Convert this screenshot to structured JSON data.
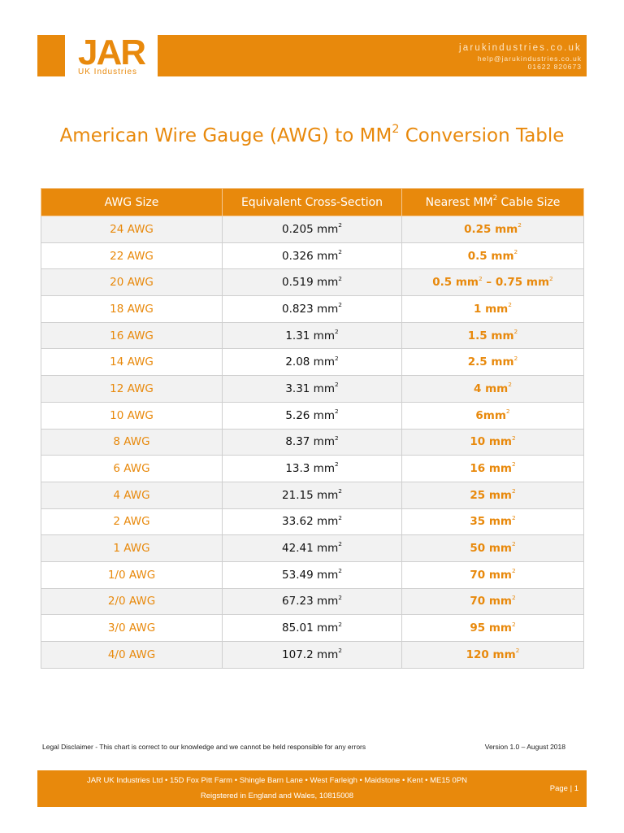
{
  "header": {
    "logo_text": "JAR",
    "logo_subtext": "UK Industries",
    "website": "jarukindustries.co.uk",
    "email": "help@jarukindustries.co.uk",
    "phone": "01622 820673"
  },
  "title": {
    "prefix": "American Wire Gauge (AWG) to MM",
    "superscript": "2",
    "suffix": " Conversion Table"
  },
  "table": {
    "headers": {
      "awg": "AWG Size",
      "equivalent": "Equivalent Cross-Section",
      "nearest_prefix": "Nearest MM",
      "nearest_sup": "2",
      "nearest_suffix": " Cable Size"
    },
    "rows": [
      {
        "awg": "24 AWG",
        "eq": "0.205 mm",
        "near": [
          [
            "0.25 mm",
            "2"
          ]
        ]
      },
      {
        "awg": "22 AWG",
        "eq": "0.326 mm",
        "near": [
          [
            "0.5 mm",
            "2"
          ]
        ]
      },
      {
        "awg": "20 AWG",
        "eq": "0.519 mm",
        "near": [
          [
            "0.5 mm",
            "2"
          ],
          [
            " – 0.75 mm",
            "2"
          ]
        ]
      },
      {
        "awg": "18 AWG",
        "eq": "0.823 mm",
        "near": [
          [
            "1 mm",
            "2"
          ]
        ]
      },
      {
        "awg": "16 AWG",
        "eq": "1.31 mm",
        "near": [
          [
            "1.5 mm",
            "2"
          ]
        ]
      },
      {
        "awg": "14 AWG",
        "eq": "2.08 mm",
        "near": [
          [
            "2.5 mm",
            "2"
          ]
        ]
      },
      {
        "awg": "12 AWG",
        "eq": "3.31 mm",
        "near": [
          [
            "4 mm",
            "2"
          ]
        ]
      },
      {
        "awg": "10 AWG",
        "eq": "5.26 mm",
        "near": [
          [
            "6mm",
            "2"
          ]
        ]
      },
      {
        "awg": "8 AWG",
        "eq": "8.37 mm",
        "near": [
          [
            "10 mm",
            "2"
          ]
        ]
      },
      {
        "awg": "6 AWG",
        "eq": "13.3 mm",
        "near": [
          [
            "16 mm",
            "2"
          ]
        ]
      },
      {
        "awg": "4 AWG",
        "eq": "21.15 mm",
        "near": [
          [
            "25 mm",
            "2"
          ]
        ]
      },
      {
        "awg": "2 AWG",
        "eq": "33.62 mm",
        "near": [
          [
            "35 mm",
            "2"
          ]
        ]
      },
      {
        "awg": "1 AWG",
        "eq": "42.41 mm",
        "near": [
          [
            "50 mm",
            "2"
          ]
        ]
      },
      {
        "awg": "1/0 AWG",
        "eq": "53.49 mm",
        "near": [
          [
            "70 mm",
            "2"
          ]
        ]
      },
      {
        "awg": "2/0 AWG",
        "eq": "67.23 mm",
        "near": [
          [
            "70 mm",
            "2"
          ]
        ]
      },
      {
        "awg": "3/0 AWG",
        "eq": "85.01 mm",
        "near": [
          [
            "95 mm",
            "2"
          ]
        ]
      },
      {
        "awg": "4/0 AWG",
        "eq": "107.2 mm",
        "near": [
          [
            "120 mm",
            "2"
          ]
        ]
      }
    ],
    "unit_superscript": "2"
  },
  "disclaimer": "Legal Disclaimer - This chart is correct to our knowledge and we cannot be held responsible for any errors",
  "version": "Version 1.0 – August 2018",
  "footer": {
    "address": "JAR UK Industries Ltd • 15D Fox Pitt Farm • Shingle Barn Lane • West Farleigh • Maidstone • Kent • ME15 0PN",
    "registration": "Reigstered in England and Wales, 10815008",
    "page_label": "Page | 1"
  },
  "colors": {
    "brand_orange": "#e8890c",
    "row_alt": "#f2f2f2"
  }
}
